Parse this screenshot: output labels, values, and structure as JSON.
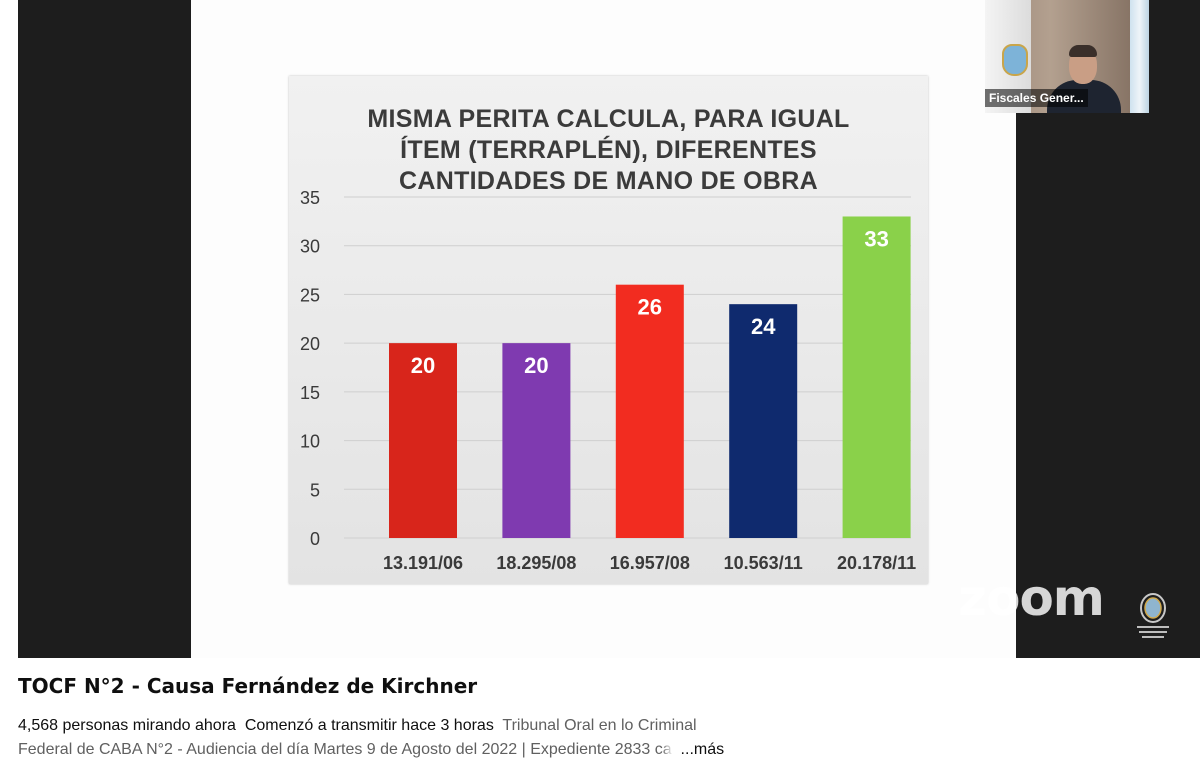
{
  "video": {
    "title": "TOCF N°2 - Causa Fernández de Kirchner",
    "viewers": "4,568 personas mirando ahora",
    "started": "Comenzó a transmitir hace 3 horas",
    "description_visible": "Tribunal Oral en lo Criminal",
    "description_line2": "Federal de CABA N°2 - Audiencia del día Martes 9 de Agosto del 2022 | Expediente 2833 ",
    "description_faded": "ca",
    "more_label": "...más"
  },
  "camera": {
    "participant_label": "Fiscales Gener...",
    "watermark": "zoom"
  },
  "chart_data": {
    "type": "bar",
    "title": "MISMA PERITA CALCULA, PARA IGUAL\nÍTEM (TERRAPLÉN), DIFERENTES\nCANTIDADES DE MANO DE OBRA",
    "categories": [
      "13.191/06",
      "18.295/08",
      "16.957/08",
      "10.563/11",
      "20.178/11"
    ],
    "values": [
      20,
      20,
      26,
      24,
      33
    ],
    "colors": [
      "#d8251b",
      "#7f3ab0",
      "#f22c20",
      "#0f2a6e",
      "#8ad14a"
    ],
    "ylim": [
      0,
      35
    ],
    "yticks": [
      0,
      5,
      10,
      15,
      20,
      25,
      30,
      35
    ],
    "grid": true,
    "data_labels": true
  }
}
